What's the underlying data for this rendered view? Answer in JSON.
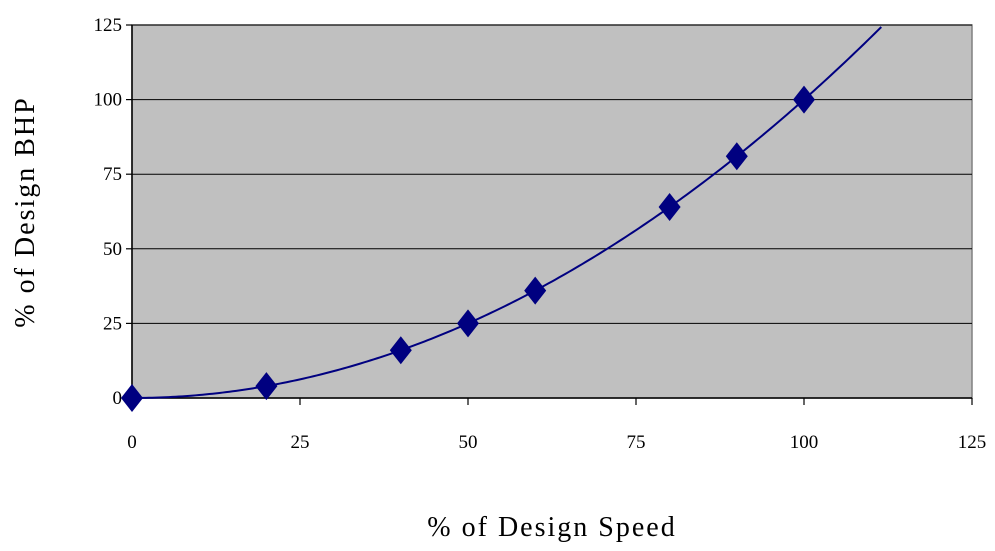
{
  "chart_data": {
    "type": "line",
    "title": "",
    "xlabel": "% of Design Speed",
    "ylabel": "% of Design BHP",
    "xlim": [
      0,
      125
    ],
    "ylim": [
      0,
      125
    ],
    "xticks": [
      "0",
      "25",
      "50",
      "75",
      "100",
      "125"
    ],
    "yticks": [
      "0",
      "25",
      "50",
      "75",
      "100",
      "125"
    ],
    "grid": "horizontal",
    "legend": "none",
    "marker": "diamond",
    "series": [
      {
        "points": [
          {
            "x": 0,
            "y": 0
          },
          {
            "x": 20,
            "y": 4
          },
          {
            "x": 40,
            "y": 16
          },
          {
            "x": 50,
            "y": 25
          },
          {
            "x": 60,
            "y": 36
          },
          {
            "x": 80,
            "y": 64
          },
          {
            "x": 90,
            "y": 81
          },
          {
            "x": 100,
            "y": 100
          }
        ],
        "curve": "y = x^2 / 100",
        "curve_x_range": [
          0,
          115
        ]
      }
    ],
    "colors": {
      "plot_background": "#c0c0c0",
      "line": "#000080",
      "marker": "#000080",
      "grid": "#000000"
    }
  }
}
